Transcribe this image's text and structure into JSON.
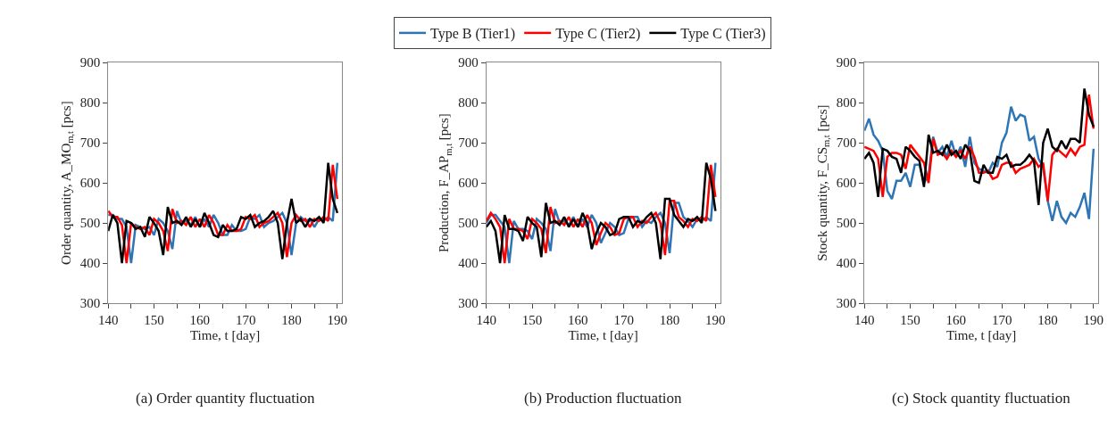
{
  "chart_data": [
    {
      "type": "line",
      "title": "(a) Order quantity fluctuation",
      "xlabel": "Time, t [day]",
      "ylabel": "Order quantity, A_MO$_{m,t}$ [pcs]",
      "xlim": [
        140,
        191
      ],
      "ylim": [
        300,
        900
      ],
      "xticks": [
        140,
        {
          "value": 145,
          "label": null
        },
        150,
        {
          "value": 155,
          "label": null
        },
        160,
        {
          "value": 165,
          "label": null
        },
        170,
        {
          "value": 175,
          "label": null
        },
        180,
        {
          "value": 185,
          "label": null
        },
        190
      ],
      "yticks": [
        300,
        400,
        500,
        600,
        700,
        800,
        900
      ],
      "grid": false,
      "legend": "top",
      "marker": "none",
      "line_style": "solid",
      "x": [
        140,
        141,
        142,
        143,
        144,
        145,
        146,
        147,
        148,
        149,
        150,
        151,
        152,
        153,
        154,
        155,
        156,
        157,
        158,
        159,
        160,
        161,
        162,
        163,
        164,
        165,
        166,
        167,
        168,
        169,
        170,
        171,
        172,
        173,
        174,
        175,
        176,
        177,
        178,
        179,
        180,
        181,
        182,
        183,
        184,
        185,
        186,
        187,
        188,
        189,
        190
      ],
      "series": [
        {
          "name": "Type B (Tier1)",
          "color": "#2e75b6",
          "values": [
            520,
            520,
            510,
            510,
            490,
            400,
            495,
            490,
            485,
            490,
            470,
            510,
            500,
            480,
            435,
            530,
            500,
            505,
            495,
            515,
            490,
            510,
            490,
            520,
            500,
            470,
            470,
            495,
            480,
            480,
            485,
            515,
            510,
            520,
            490,
            500,
            505,
            515,
            525,
            500,
            420,
            500,
            515,
            505,
            510,
            490,
            510,
            505,
            515,
            505,
            650
          ]
        },
        {
          "name": "Type C (Tier2)",
          "color": "#ff0000",
          "values": [
            530,
            515,
            515,
            495,
            400,
            500,
            490,
            485,
            490,
            470,
            510,
            500,
            480,
            430,
            535,
            500,
            505,
            495,
            515,
            490,
            510,
            490,
            520,
            500,
            470,
            470,
            495,
            480,
            480,
            485,
            515,
            510,
            520,
            490,
            500,
            505,
            515,
            525,
            500,
            415,
            500,
            520,
            505,
            510,
            490,
            510,
            505,
            515,
            505,
            645,
            560
          ]
        },
        {
          "name": "Type C (Tier3)",
          "color": "#000000",
          "values": [
            480,
            520,
            500,
            400,
            505,
            500,
            485,
            490,
            465,
            515,
            500,
            480,
            420,
            540,
            500,
            505,
            495,
            515,
            490,
            510,
            490,
            525,
            500,
            470,
            465,
            495,
            480,
            480,
            485,
            515,
            510,
            520,
            490,
            500,
            505,
            515,
            530,
            500,
            410,
            500,
            560,
            500,
            510,
            490,
            510,
            505,
            515,
            500,
            650,
            560,
            525
          ]
        }
      ]
    },
    {
      "type": "line",
      "title": "(b) Production fluctuation",
      "xlabel": "Time, t [day]",
      "ylabel": "Production, F_AP$_{m,t}$ [pcs]",
      "xlim": [
        140,
        191
      ],
      "ylim": [
        300,
        900
      ],
      "xticks": [
        140,
        {
          "value": 145,
          "label": null
        },
        150,
        {
          "value": 155,
          "label": null
        },
        160,
        {
          "value": 165,
          "label": null
        },
        170,
        {
          "value": 175,
          "label": null
        },
        180,
        {
          "value": 185,
          "label": null
        },
        190
      ],
      "yticks": [
        300,
        400,
        500,
        600,
        700,
        800,
        900
      ],
      "grid": false,
      "marker": "none",
      "line_style": "solid",
      "x": [
        140,
        141,
        142,
        143,
        144,
        145,
        146,
        147,
        148,
        149,
        150,
        151,
        152,
        153,
        154,
        155,
        156,
        157,
        158,
        159,
        160,
        161,
        162,
        163,
        164,
        165,
        166,
        167,
        168,
        169,
        170,
        171,
        172,
        173,
        174,
        175,
        176,
        177,
        178,
        179,
        180,
        181,
        182,
        183,
        184,
        185,
        186,
        187,
        188,
        189,
        190
      ],
      "series": [
        {
          "color": "#2e75b6",
          "values": [
            500,
            520,
            520,
            505,
            490,
            400,
            505,
            485,
            485,
            480,
            460,
            510,
            500,
            485,
            430,
            535,
            500,
            505,
            495,
            515,
            490,
            510,
            490,
            520,
            500,
            450,
            475,
            500,
            490,
            470,
            475,
            510,
            515,
            515,
            490,
            505,
            500,
            515,
            525,
            500,
            425,
            550,
            550,
            515,
            505,
            490,
            510,
            505,
            515,
            505,
            650
          ]
        },
        {
          "color": "#ff0000",
          "values": [
            505,
            525,
            510,
            490,
            400,
            510,
            485,
            485,
            480,
            460,
            510,
            500,
            485,
            425,
            540,
            500,
            505,
            495,
            515,
            490,
            510,
            490,
            520,
            500,
            445,
            475,
            500,
            490,
            470,
            475,
            510,
            515,
            515,
            490,
            505,
            500,
            515,
            525,
            500,
            420,
            555,
            555,
            515,
            505,
            490,
            510,
            505,
            515,
            505,
            645,
            565
          ]
        },
        {
          "color": "#000000",
          "values": [
            490,
            505,
            480,
            400,
            520,
            485,
            485,
            480,
            455,
            515,
            500,
            490,
            415,
            550,
            500,
            505,
            495,
            515,
            490,
            510,
            490,
            525,
            500,
            435,
            475,
            500,
            490,
            470,
            475,
            510,
            515,
            515,
            490,
            505,
            500,
            515,
            525,
            500,
            410,
            560,
            560,
            520,
            505,
            490,
            510,
            505,
            515,
            500,
            650,
            610,
            530
          ]
        }
      ]
    },
    {
      "type": "line",
      "title": "(c) Stock quantity fluctuation",
      "xlabel": "Time, t [day]",
      "ylabel": "Stock quantity, F_CS$_{m,t}$ [pcs]",
      "xlim": [
        140,
        191
      ],
      "ylim": [
        300,
        900
      ],
      "xticks": [
        140,
        {
          "value": 145,
          "label": null
        },
        150,
        {
          "value": 155,
          "label": null
        },
        160,
        {
          "value": 165,
          "label": null
        },
        170,
        {
          "value": 175,
          "label": null
        },
        180,
        {
          "value": 185,
          "label": null
        },
        190
      ],
      "yticks": [
        300,
        400,
        500,
        600,
        700,
        800,
        900
      ],
      "grid": false,
      "marker": "none",
      "line_style": "solid",
      "x": [
        140,
        141,
        142,
        143,
        144,
        145,
        146,
        147,
        148,
        149,
        150,
        151,
        152,
        153,
        154,
        155,
        156,
        157,
        158,
        159,
        160,
        161,
        162,
        163,
        164,
        165,
        166,
        167,
        168,
        169,
        170,
        171,
        172,
        173,
        174,
        175,
        176,
        177,
        178,
        179,
        180,
        181,
        182,
        183,
        184,
        185,
        186,
        187,
        188,
        189,
        190
      ],
      "series": [
        {
          "color": "#2e75b6",
          "values": [
            730,
            760,
            720,
            705,
            680,
            580,
            560,
            605,
            605,
            625,
            590,
            645,
            645,
            600,
            620,
            715,
            675,
            690,
            665,
            705,
            665,
            690,
            640,
            715,
            650,
            635,
            630,
            625,
            650,
            640,
            700,
            725,
            790,
            755,
            770,
            765,
            705,
            715,
            660,
            640,
            555,
            505,
            555,
            515,
            500,
            525,
            515,
            540,
            575,
            510,
            685
          ]
        },
        {
          "color": "#ff0000",
          "values": [
            690,
            685,
            680,
            660,
            565,
            665,
            675,
            675,
            670,
            635,
            695,
            680,
            665,
            650,
            600,
            710,
            670,
            675,
            660,
            680,
            665,
            680,
            660,
            690,
            665,
            625,
            625,
            630,
            610,
            615,
            645,
            650,
            650,
            625,
            635,
            640,
            645,
            660,
            640,
            650,
            555,
            670,
            685,
            675,
            665,
            685,
            670,
            690,
            695,
            820,
            735
          ]
        },
        {
          "color": "#000000",
          "values": [
            660,
            675,
            650,
            565,
            685,
            680,
            665,
            660,
            625,
            690,
            680,
            665,
            655,
            590,
            720,
            675,
            680,
            670,
            695,
            670,
            680,
            660,
            695,
            680,
            605,
            600,
            645,
            625,
            625,
            665,
            660,
            670,
            640,
            645,
            645,
            655,
            670,
            655,
            545,
            700,
            735,
            690,
            680,
            705,
            685,
            710,
            710,
            700,
            835,
            770,
            740
          ]
        }
      ]
    }
  ]
}
